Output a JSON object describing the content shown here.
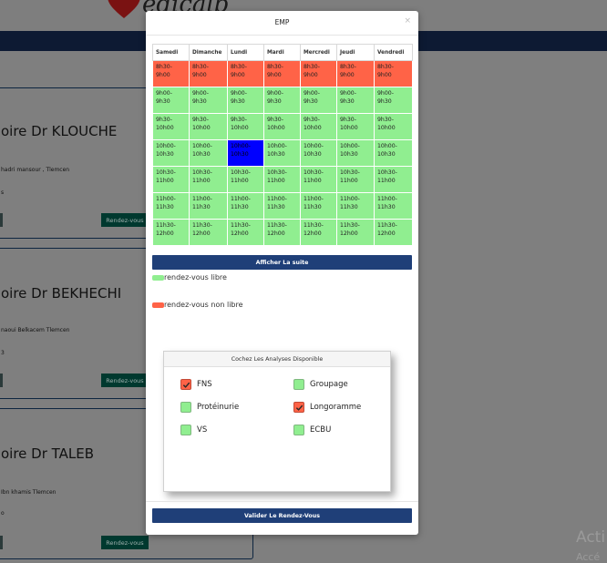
{
  "background": {
    "brand_fragment": "edicalb",
    "doctor_cards": [
      {
        "title": "oire Dr KLOUCHE",
        "address": "hadri mansour , Tlemcen",
        "mark": "s",
        "button_label": "Rendez-vous"
      },
      {
        "title": "oire Dr BEKHECHI",
        "address": "naoui Belkacem Tlemcen",
        "mark": "3",
        "button_label": "Rendez-vous"
      },
      {
        "title": "oire Dr TALEB",
        "address": "Ibn khamis Tlemcen",
        "mark": "o",
        "button_label": "Rendez-vous"
      }
    ],
    "watermark": "Acti",
    "watermark_sub": "Accé"
  },
  "modal": {
    "title": "EMP",
    "close_symbol": "×",
    "schedule": {
      "days": [
        "Samedi",
        "Dimanche",
        "Lundi",
        "Mardi",
        "Mercredi",
        "Jeudi",
        "Vendredi"
      ],
      "slots": [
        {
          "label": [
            "8h30-",
            "9h00"
          ],
          "states": [
            "busy",
            "busy",
            "busy",
            "busy",
            "busy",
            "busy",
            "busy"
          ]
        },
        {
          "label": [
            "9h00-",
            "9h30"
          ],
          "states": [
            "free",
            "free",
            "free",
            "free",
            "free",
            "free",
            "free"
          ]
        },
        {
          "label": [
            "9h30-",
            "10h00"
          ],
          "states": [
            "free",
            "free",
            "free",
            "free",
            "free",
            "free",
            "free"
          ]
        },
        {
          "label": [
            "10h00-",
            "10h30"
          ],
          "states": [
            "free",
            "free",
            "selected",
            "free",
            "free",
            "free",
            "free"
          ]
        },
        {
          "label": [
            "10h30-",
            "11h00"
          ],
          "states": [
            "free",
            "free",
            "free",
            "free",
            "free",
            "free",
            "free"
          ]
        },
        {
          "label": [
            "11h00-",
            "11h30"
          ],
          "states": [
            "free",
            "free",
            "free",
            "free",
            "free",
            "free",
            "free"
          ]
        },
        {
          "label": [
            "11h30-",
            "12h00"
          ],
          "states": [
            "free",
            "free",
            "free",
            "free",
            "free",
            "free",
            "free"
          ]
        }
      ]
    },
    "show_more_label": "Afficher La suite",
    "legend": [
      {
        "label": "rendez-vous libre",
        "color": "#90ee90"
      },
      {
        "label": "rendez-vous non libre",
        "color": "#ff6347"
      }
    ],
    "analyses": {
      "title": "Cochez Les Analyses Disponible",
      "items": [
        {
          "label": "FNS",
          "checked": true
        },
        {
          "label": "Groupage",
          "checked": false
        },
        {
          "label": "Protéinurie",
          "checked": false
        },
        {
          "label": "Longoramme",
          "checked": true
        },
        {
          "label": "VS",
          "checked": false
        },
        {
          "label": "ECBU",
          "checked": false
        }
      ]
    },
    "submit_label": "Valider Le Rendez-Vous"
  },
  "colors": {
    "busy": "#ff6347",
    "free": "#90ee90",
    "selected": "#0000ff",
    "primary_button": "#1f3f78",
    "overlay": "#7f7f7f"
  }
}
